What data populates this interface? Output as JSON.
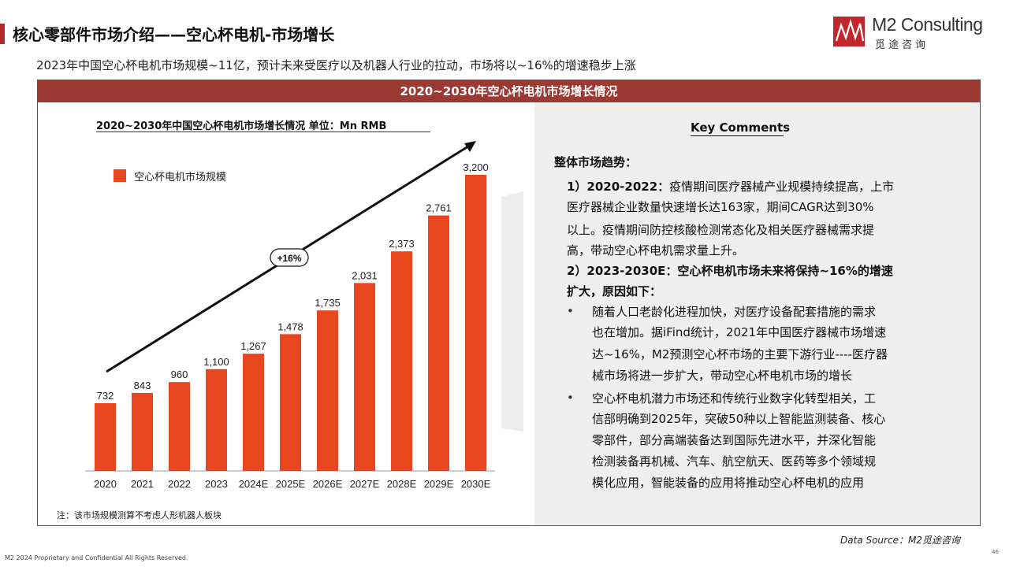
{
  "header": {
    "title": "核心零部件市场介绍——空心杯电机-市场增长",
    "subtitle": "2023年中国空心杯电机市场规模~11亿，预计未来受医疗以及机器人行业的拉动，市场将以~16%的增速稳步上涨",
    "logo_name": "M2 Consulting",
    "logo_sub": "觅途咨询"
  },
  "panel": {
    "heading": "2020~2030年空心杯电机市场增长情况"
  },
  "chart_data": {
    "type": "bar",
    "title": "2020~2030年中国空心杯电机市场增长情况  单位：Mn RMB",
    "categories": [
      "2020",
      "2021",
      "2022",
      "2023",
      "2024E",
      "2025E",
      "2026E",
      "2027E",
      "2028E",
      "2029E",
      "2030E"
    ],
    "series": [
      {
        "name": "空心杯电机市场规模",
        "values": [
          732,
          843,
          960,
          1100,
          1267,
          1478,
          1735,
          2031,
          2373,
          2761,
          3200
        ]
      }
    ],
    "value_labels": [
      "732",
      "843",
      "960",
      "1,100",
      "1,267",
      "1,478",
      "1,735",
      "2,031",
      "2,373",
      "2,761",
      "3,200"
    ],
    "annotation": "+16%",
    "bar_color": "#e8461e",
    "legend_position": "top-left"
  },
  "footnote": "注：该市场规模测算不考虑人形机器人板块",
  "comments": {
    "title": "Key Comments",
    "section_heading": "整体市场趋势：",
    "p1_label": "1）2020-2022：",
    "p1_l1": "疫情期间医疗器械产业规模持续提高，上市",
    "p1_l2": "医疗器械企业数量快速增长达163家，期间CAGR达到30%",
    "p1_l3": "以上。疫情期间防控核酸检测常态化及相关医疗器械需求提",
    "p1_l4": "高，带动空心杯电机需求量上升。",
    "p2_l1": "2）2023-2030E：空心杯电机市场未来将保持~16%的增速",
    "p2_l2": "扩大，原因如下：",
    "b1_l1": "随着人口老龄化进程加快，对医疗设备配套措施的需求",
    "b1_l2": "也在增加。据iFind统计，2021年中国医疗器械市场增速",
    "b1_l3": "达~16%，M2预测空心杯市场的主要下游行业----医疗器",
    "b1_l4": "械市场将进一步扩大，带动空心杯电机市场的增长",
    "b2_l1": "空心杯电机潜力市场还和传统行业数字化转型相关，工",
    "b2_l2": "信部明确到2025年，突破50种以上智能监测装备、核心",
    "b2_l3": "零部件，部分高端装备达到国际先进水平，并深化智能",
    "b2_l4": "检测装备再机械、汽车、航空航天、医药等多个领域规",
    "b2_l5": "模化应用，智能装备的应用将推动空心杯电机的应用"
  },
  "data_source": "Data Source：M2觅途咨询",
  "copyright": "M2  2024 Proprietary and Confidential All Rights Reserved.",
  "page_number": "46"
}
